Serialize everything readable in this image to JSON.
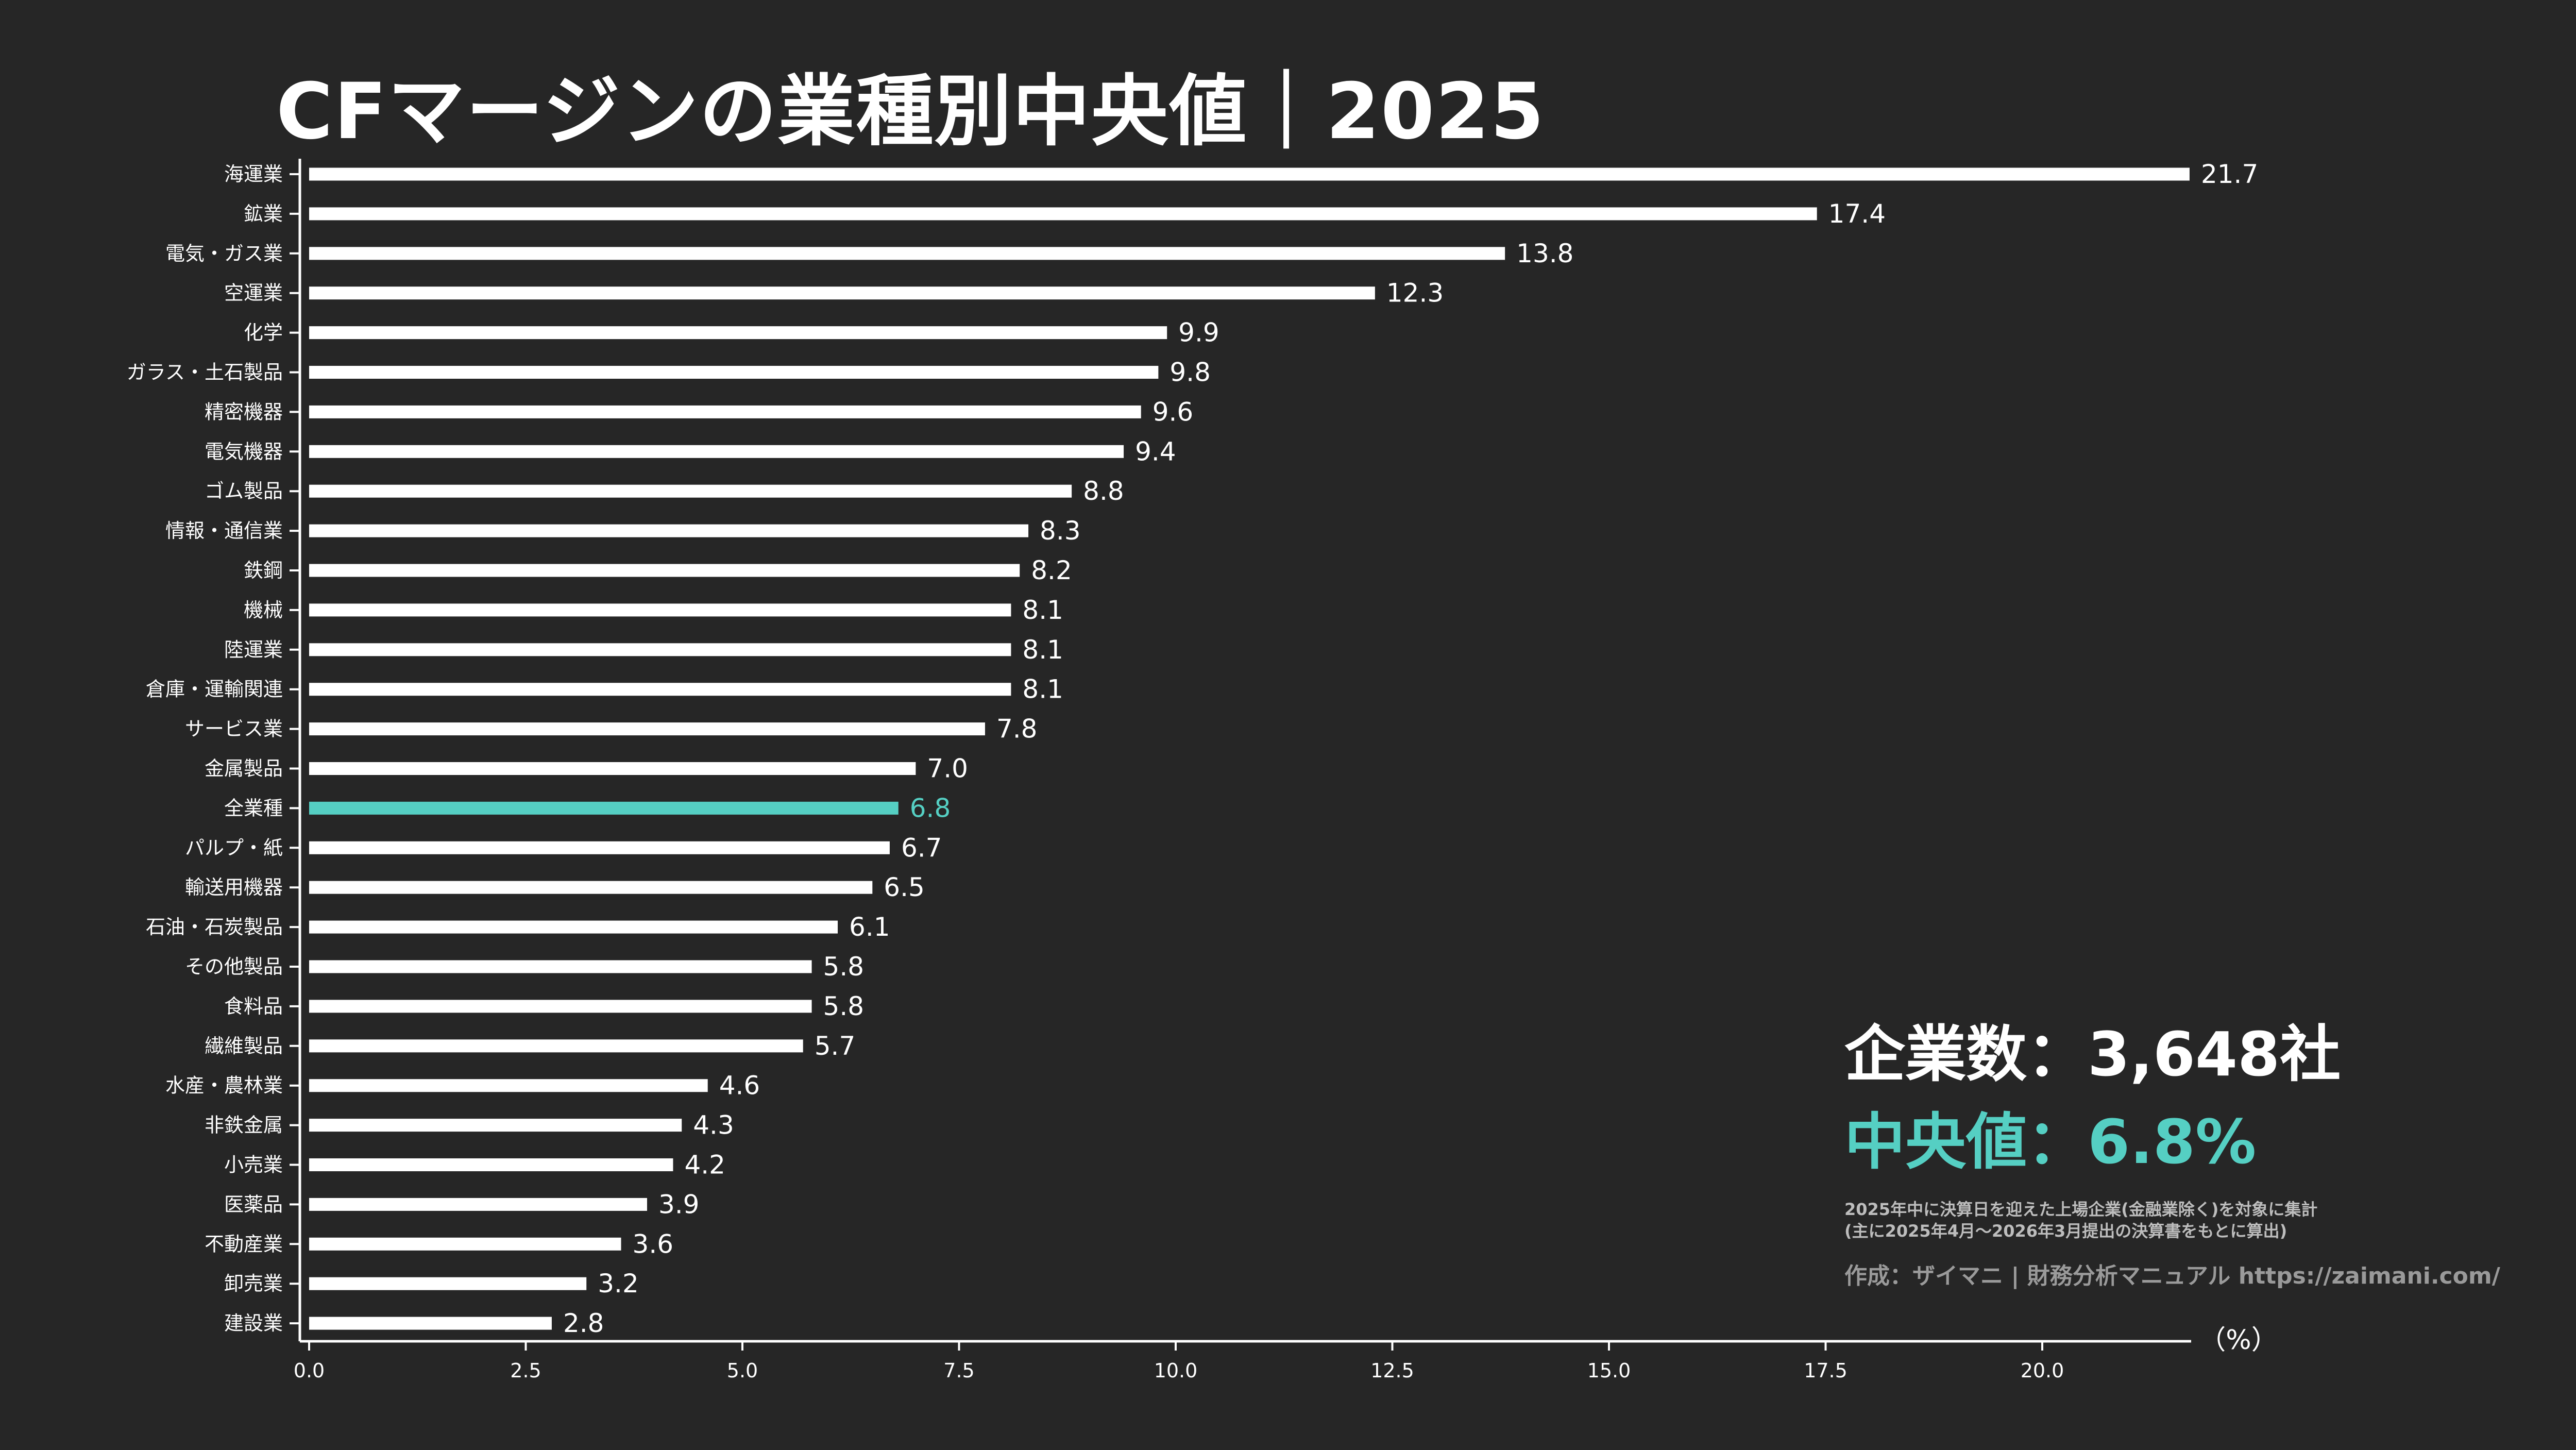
{
  "title": "CFマージンの業種別中央値｜2025",
  "colors": {
    "background": "#262626",
    "bar": "#ffffff",
    "highlight": "#55cfc3",
    "axis": "#ffffff"
  },
  "annotation": {
    "company_count": "企業数：3,648社",
    "median": "中央値：6.8%",
    "note_line1": "2025年中に決算日を迎えた上場企業(金融業除く)を対象に集計",
    "note_line2": "(主に2025年4月～2026年3月提出の決算書をもとに算出)",
    "credit": "作成：ザイマニ | 財務分析マニュアル https://zaimani.com/"
  },
  "chart_data": {
    "type": "bar",
    "orientation": "horizontal",
    "title": "CFマージンの業種別中央値｜2025",
    "xlabel": "（%）",
    "ylabel": "",
    "xlim": [
      0,
      21.7
    ],
    "xticks": [
      "0.0",
      "2.5",
      "5.0",
      "7.5",
      "10.0",
      "12.5",
      "15.0",
      "17.5",
      "20.0"
    ],
    "grid": false,
    "highlight_category": "全業種",
    "categories": [
      "海運業",
      "鉱業",
      "電気・ガス業",
      "空運業",
      "化学",
      "ガラス・土石製品",
      "精密機器",
      "電気機器",
      "ゴム製品",
      "情報・通信業",
      "鉄鋼",
      "機械",
      "陸運業",
      "倉庫・運輸関連",
      "サービス業",
      "金属製品",
      "全業種",
      "パルプ・紙",
      "輸送用機器",
      "石油・石炭製品",
      "その他製品",
      "食料品",
      "繊維製品",
      "水産・農林業",
      "非鉄金属",
      "小売業",
      "医薬品",
      "不動産業",
      "卸売業",
      "建設業"
    ],
    "values": [
      21.7,
      17.4,
      13.8,
      12.3,
      9.9,
      9.8,
      9.6,
      9.4,
      8.8,
      8.3,
      8.2,
      8.1,
      8.1,
      8.1,
      7.8,
      7.0,
      6.8,
      6.7,
      6.5,
      6.1,
      5.8,
      5.8,
      5.7,
      4.6,
      4.3,
      4.2,
      3.9,
      3.6,
      3.2,
      2.8
    ]
  }
}
